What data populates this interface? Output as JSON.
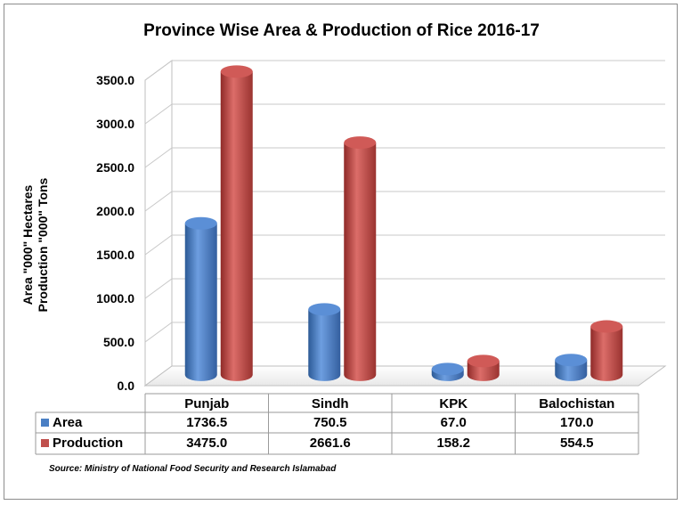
{
  "chart_data": {
    "type": "bar",
    "title": "Province Wise Area & Production of Rice 2016-17",
    "ylabel": [
      "Area \"000\" Hectares",
      "Production \"000\" Tons"
    ],
    "xlabel": "",
    "ylim": [
      0,
      3500
    ],
    "yticks": [
      "0.0",
      "500.0",
      "1000.0",
      "1500.0",
      "2000.0",
      "2500.0",
      "3000.0",
      "3500.0"
    ],
    "categories": [
      "Punjab",
      "Sindh",
      "KPK",
      "Balochistan"
    ],
    "series": [
      {
        "name": "Area",
        "values": [
          1736.5,
          750.5,
          67.0,
          170.0
        ],
        "labels": [
          "1736.5",
          "750.5",
          "67.0",
          "170.0"
        ],
        "color": "#4a7fc4"
      },
      {
        "name": "Production",
        "values": [
          3475.0,
          2661.6,
          158.2,
          554.5
        ],
        "labels": [
          "3475.0",
          "2661.6",
          "158.2",
          "554.5"
        ],
        "color": "#c0504d"
      }
    ],
    "grid": true,
    "legend": "data-table-below"
  },
  "source": "Source: Ministry of National Food Security and Research Islamabad"
}
